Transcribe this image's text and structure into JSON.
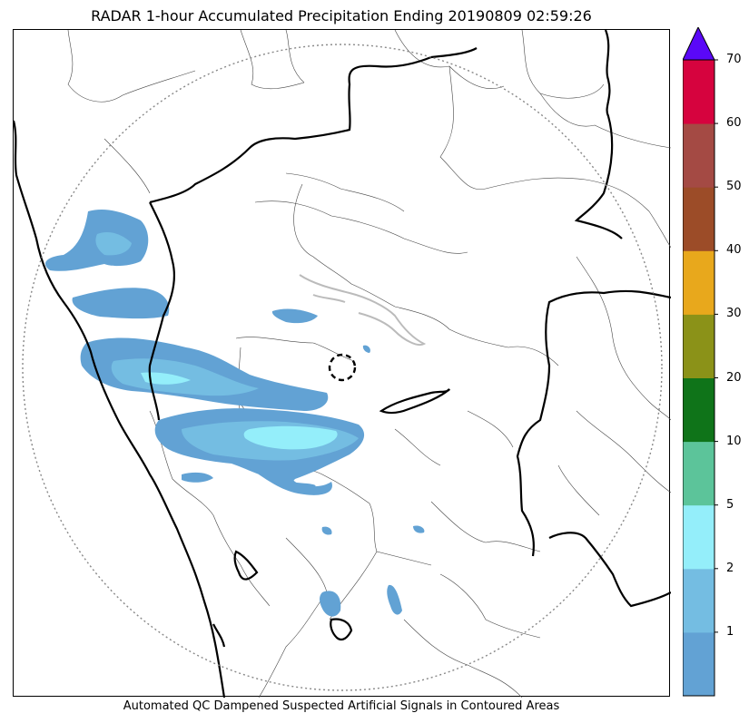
{
  "title": "RADAR 1-hour Accumulated Precipitation Ending 20190809 02:59:26",
  "footer": "Automated QC Dampened Suspected Artificial Signals in Contoured Areas",
  "colorbar": {
    "levels": [
      {
        "label": "1",
        "color": "#62a2d4"
      },
      {
        "label": "2",
        "color": "#74bde2"
      },
      {
        "label": "5",
        "color": "#94eefa"
      },
      {
        "label": "10",
        "color": "#5cc49a"
      },
      {
        "label": "20",
        "color": "#0f7419"
      },
      {
        "label": "30",
        "color": "#8b9218"
      },
      {
        "label": "40",
        "color": "#e8a81c"
      },
      {
        "label": "50",
        "color": "#9c4c28"
      },
      {
        "label": "60",
        "color": "#a44a44"
      },
      {
        "label": "70",
        "color": "#d6033e"
      }
    ],
    "extend_color": "#5a08f8"
  },
  "map": {
    "range_ring_color": "#888888",
    "border_color": "#000000",
    "district_color": "#444444",
    "radar_site_marker": "dashed-circle",
    "qc_contour_color": "#bbbbbb"
  }
}
